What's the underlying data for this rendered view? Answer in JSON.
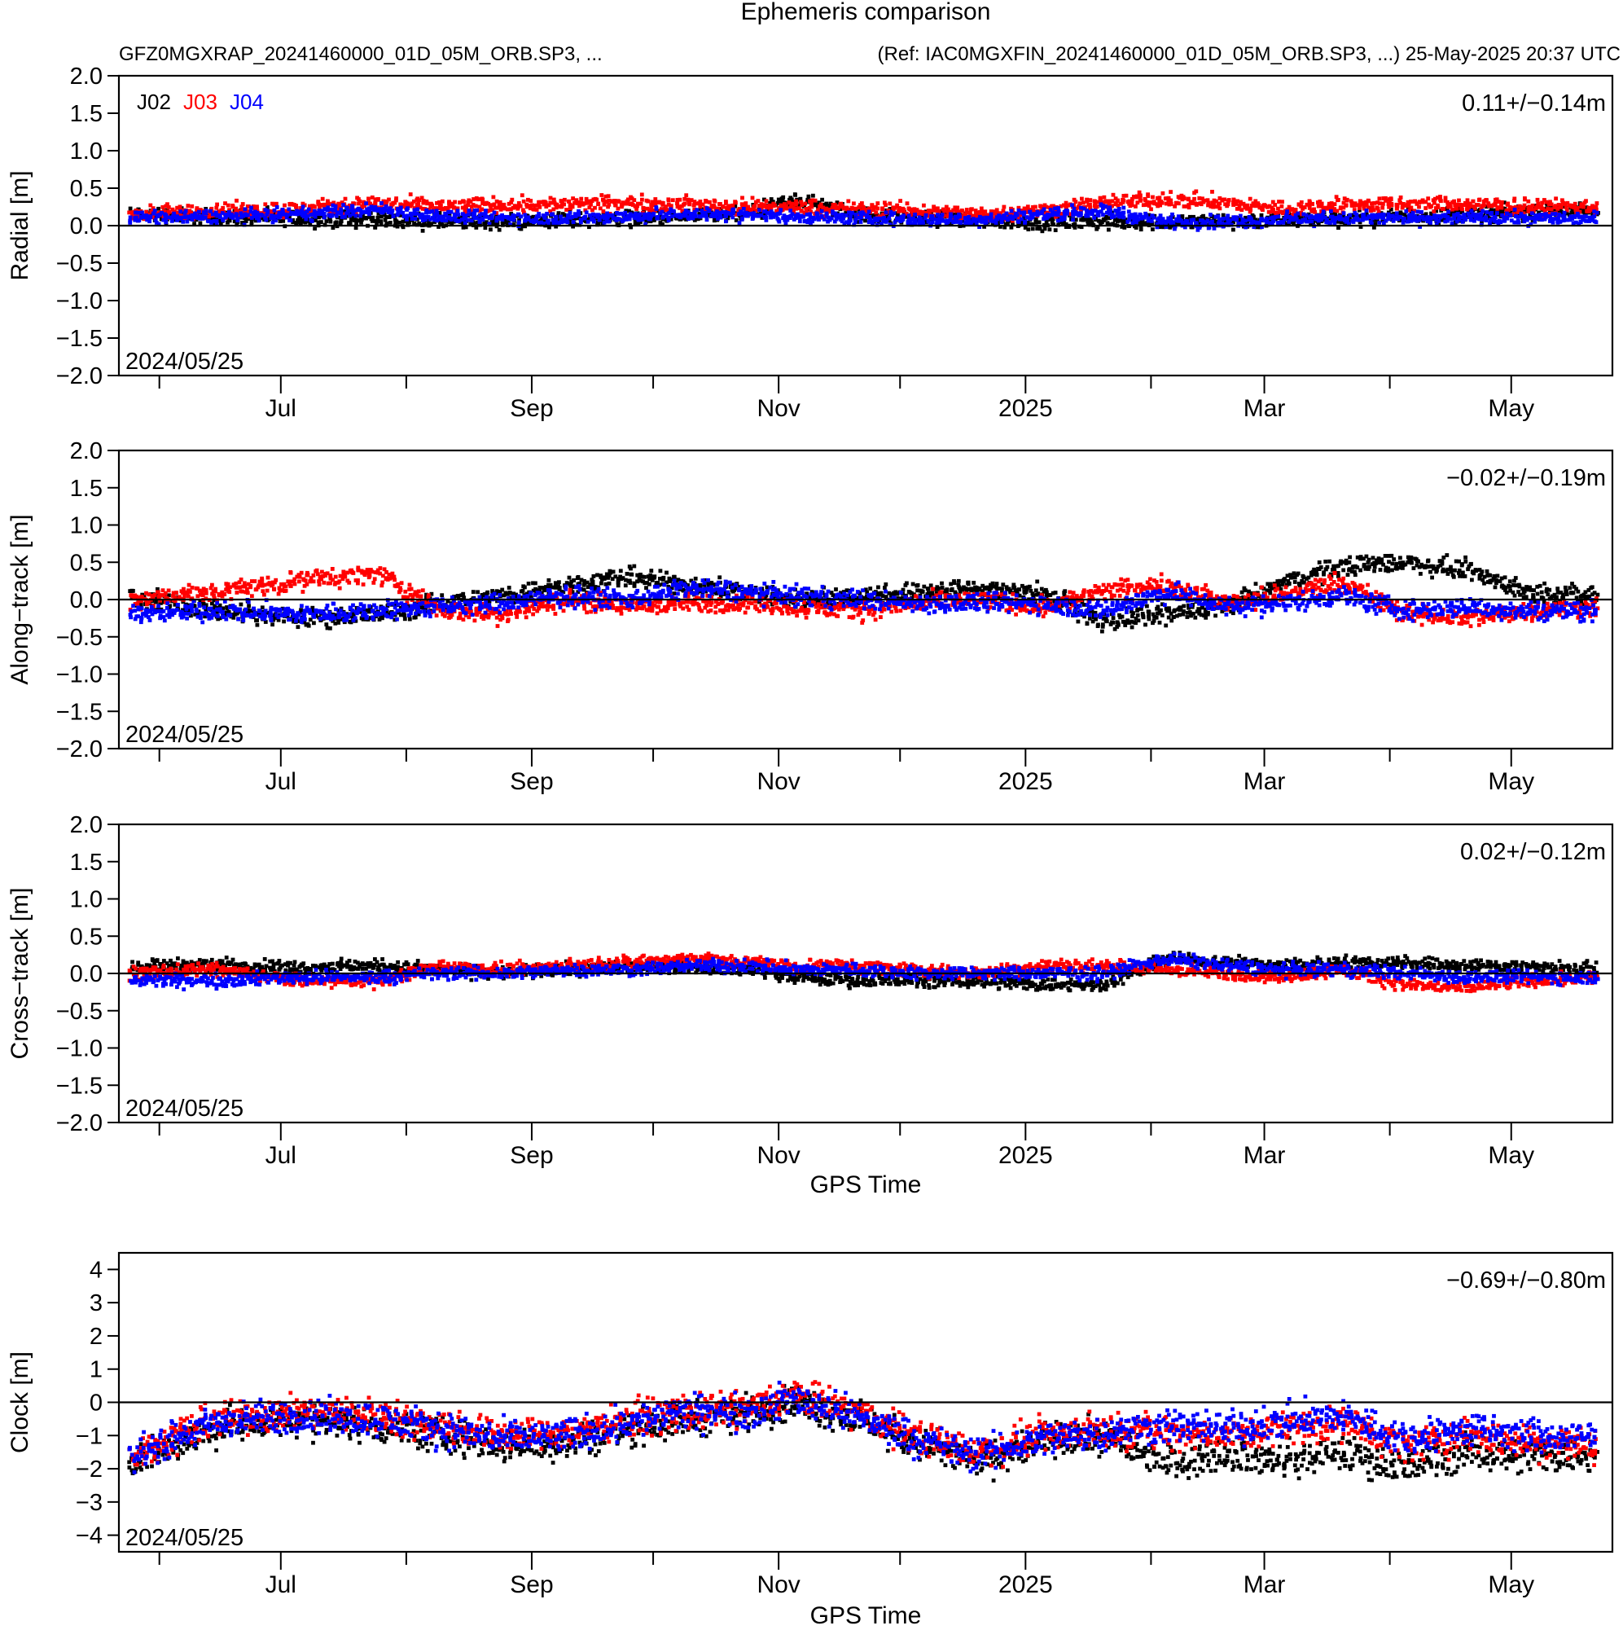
{
  "header": {
    "title": "Ephemeris comparison",
    "subtitle_left": "GFZ0MGXRAP_20241460000_01D_05M_ORB.SP3, ...",
    "subtitle_right": "(Ref: IAC0MGXFIN_20241460000_01D_05M_ORB.SP3, ...)  25-May-2025 20:37 UTC"
  },
  "legend": [
    {
      "label": "J02",
      "color": "#000000"
    },
    {
      "label": "J03",
      "color": "#ff0000"
    },
    {
      "label": "J04",
      "color": "#0000ff"
    }
  ],
  "x_axis": {
    "label": "GPS Time",
    "tick_labels": [
      "Jul",
      "Sep",
      "Nov",
      "2025",
      "Mar",
      "May"
    ]
  },
  "chart_data": [
    {
      "type": "scatter",
      "ylabel": "Radial [m]",
      "ylim": [
        -2.0,
        2.0
      ],
      "yticks": [
        "2.0",
        "1.5",
        "1.0",
        "0.5",
        "0.0",
        "−0.5",
        "−1.0",
        "−1.5",
        "−2.0"
      ],
      "stats": "0.11+/−0.14m",
      "start_date": "2024/05/25",
      "show_legend": true,
      "x": [
        "2024-05-25",
        "2024-06-15",
        "2024-07-05",
        "2024-07-25",
        "2024-08-10",
        "2024-08-25",
        "2024-09-10",
        "2024-09-25",
        "2024-10-10",
        "2024-10-25",
        "2024-11-05",
        "2024-11-20",
        "2024-12-05",
        "2024-12-20",
        "2025-01-05",
        "2025-01-20",
        "2025-02-05",
        "2025-02-20",
        "2025-03-05",
        "2025-03-20",
        "2025-04-05",
        "2025-04-20",
        "2025-05-05",
        "2025-05-22"
      ],
      "series": [
        {
          "name": "J02",
          "color": "#000000",
          "values": [
            0.15,
            0.12,
            0.1,
            0.08,
            0.05,
            0.05,
            0.08,
            0.1,
            0.12,
            0.15,
            0.35,
            0.15,
            0.1,
            0.08,
            0.05,
            0.05,
            0.05,
            0.05,
            0.08,
            0.1,
            0.12,
            0.15,
            0.18,
            0.2
          ],
          "spread": 0.12
        },
        {
          "name": "J03",
          "color": "#ff0000",
          "values": [
            0.15,
            0.2,
            0.22,
            0.3,
            0.25,
            0.28,
            0.28,
            0.3,
            0.28,
            0.25,
            0.25,
            0.22,
            0.2,
            0.15,
            0.2,
            0.3,
            0.35,
            0.3,
            0.22,
            0.28,
            0.28,
            0.28,
            0.25,
            0.25
          ],
          "spread": 0.12
        },
        {
          "name": "J04",
          "color": "#0000ff",
          "values": [
            0.1,
            0.12,
            0.15,
            0.22,
            0.12,
            0.1,
            0.1,
            0.12,
            0.15,
            0.15,
            0.12,
            0.1,
            0.08,
            0.08,
            0.15,
            0.2,
            0.05,
            0.05,
            0.08,
            0.1,
            0.1,
            0.1,
            0.1,
            0.1
          ],
          "spread": 0.1
        }
      ]
    },
    {
      "type": "scatter",
      "ylabel": "Along−track [m]",
      "ylim": [
        -2.0,
        2.0
      ],
      "yticks": [
        "2.0",
        "1.5",
        "1.0",
        "0.5",
        "0.0",
        "−0.5",
        "−1.0",
        "−1.5",
        "−2.0"
      ],
      "stats": "−0.02+/−0.19m",
      "start_date": "2024/05/25",
      "show_legend": false,
      "x": [
        "2024-05-25",
        "2024-06-15",
        "2024-07-05",
        "2024-07-25",
        "2024-08-10",
        "2024-08-25",
        "2024-09-10",
        "2024-09-25",
        "2024-10-10",
        "2024-10-25",
        "2024-11-05",
        "2024-11-20",
        "2024-12-05",
        "2024-12-20",
        "2025-01-05",
        "2025-01-20",
        "2025-02-05",
        "2025-02-20",
        "2025-03-05",
        "2025-03-20",
        "2025-04-05",
        "2025-04-20",
        "2025-05-05",
        "2025-05-22"
      ],
      "series": [
        {
          "name": "J02",
          "color": "#000000",
          "values": [
            0.05,
            -0.15,
            -0.25,
            -0.2,
            -0.05,
            0.05,
            0.2,
            0.3,
            0.2,
            0.1,
            0.0,
            0.05,
            0.1,
            0.15,
            0.1,
            -0.3,
            -0.2,
            -0.1,
            0.2,
            0.45,
            0.5,
            0.4,
            0.1,
            0.05
          ],
          "spread": 0.15
        },
        {
          "name": "J03",
          "color": "#ff0000",
          "values": [
            0.0,
            0.1,
            0.25,
            0.35,
            -0.15,
            -0.2,
            0.0,
            -0.1,
            -0.05,
            -0.05,
            -0.1,
            -0.15,
            -0.05,
            0.0,
            -0.1,
            0.1,
            0.2,
            -0.05,
            0.05,
            0.25,
            -0.2,
            -0.25,
            -0.15,
            -0.1
          ],
          "spread": 0.15
        },
        {
          "name": "J04",
          "color": "#0000ff",
          "values": [
            -0.2,
            -0.15,
            -0.2,
            -0.15,
            -0.1,
            -0.05,
            0.05,
            0.0,
            0.15,
            0.1,
            0.05,
            0.0,
            -0.05,
            -0.05,
            -0.05,
            -0.15,
            0.1,
            -0.1,
            -0.05,
            0.05,
            -0.15,
            -0.1,
            -0.15,
            -0.15
          ],
          "spread": 0.15
        }
      ]
    },
    {
      "type": "scatter",
      "ylabel": "Cross−track [m]",
      "ylim": [
        -2.0,
        2.0
      ],
      "yticks": [
        "2.0",
        "1.5",
        "1.0",
        "0.5",
        "0.0",
        "−0.5",
        "−1.0",
        "−1.5",
        "−2.0"
      ],
      "stats": "0.02+/−0.12m",
      "start_date": "2024/05/25",
      "show_legend": false,
      "x": [
        "2024-05-25",
        "2024-06-15",
        "2024-07-05",
        "2024-07-25",
        "2024-08-10",
        "2024-08-25",
        "2024-09-10",
        "2024-09-25",
        "2024-10-10",
        "2024-10-25",
        "2024-11-05",
        "2024-11-20",
        "2024-12-05",
        "2024-12-20",
        "2025-01-05",
        "2025-01-20",
        "2025-02-05",
        "2025-02-20",
        "2025-03-05",
        "2025-03-20",
        "2025-04-05",
        "2025-04-20",
        "2025-05-05",
        "2025-05-22"
      ],
      "series": [
        {
          "name": "J02",
          "color": "#000000",
          "values": [
            0.1,
            0.12,
            0.08,
            0.1,
            0.05,
            0.0,
            0.05,
            0.1,
            0.1,
            0.05,
            -0.05,
            -0.1,
            -0.1,
            -0.1,
            -0.15,
            -0.15,
            0.2,
            0.15,
            0.1,
            0.15,
            0.15,
            0.1,
            0.1,
            0.05
          ],
          "spread": 0.1
        },
        {
          "name": "J03",
          "color": "#ff0000",
          "values": [
            0.0,
            0.05,
            -0.1,
            -0.1,
            0.1,
            0.05,
            0.1,
            0.15,
            0.2,
            0.15,
            0.1,
            0.1,
            0.05,
            0.0,
            0.1,
            0.1,
            0.05,
            0.0,
            -0.05,
            0.05,
            -0.15,
            -0.2,
            -0.1,
            -0.05
          ],
          "spread": 0.1
        },
        {
          "name": "J04",
          "color": "#0000ff",
          "values": [
            -0.1,
            -0.1,
            -0.05,
            -0.05,
            0.0,
            0.0,
            0.05,
            0.05,
            0.1,
            0.1,
            0.05,
            0.05,
            0.0,
            0.0,
            0.0,
            0.0,
            0.2,
            0.1,
            0.05,
            0.05,
            0.0,
            -0.05,
            -0.05,
            -0.05
          ],
          "spread": 0.1
        }
      ]
    },
    {
      "type": "scatter",
      "ylabel": "Clock [m]",
      "ylim": [
        -4.5,
        4.5
      ],
      "yticks": [
        "4",
        "3",
        "2",
        "1",
        "0",
        "−1",
        "−2",
        "−3",
        "−4"
      ],
      "stats": "−0.69+/−0.80m",
      "start_date": "2024/05/25",
      "show_legend": false,
      "x": [
        "2024-05-25",
        "2024-06-15",
        "2024-07-05",
        "2024-07-25",
        "2024-08-10",
        "2024-08-25",
        "2024-09-10",
        "2024-09-25",
        "2024-10-10",
        "2024-10-25",
        "2024-11-05",
        "2024-11-20",
        "2024-12-05",
        "2024-12-20",
        "2025-01-05",
        "2025-01-20",
        "2025-02-05",
        "2025-02-20",
        "2025-03-05",
        "2025-03-20",
        "2025-04-05",
        "2025-04-20",
        "2025-05-05",
        "2025-05-22"
      ],
      "series": [
        {
          "name": "J02",
          "color": "#000000",
          "values": [
            -1.8,
            -0.8,
            -0.5,
            -0.7,
            -1.0,
            -1.3,
            -1.2,
            -0.8,
            -0.5,
            -0.3,
            0.0,
            -0.5,
            -1.2,
            -1.8,
            -1.2,
            -1.0,
            -1.8,
            -1.5,
            -1.8,
            -1.5,
            -2.0,
            -1.5,
            -1.6,
            -1.6
          ],
          "spread": 0.6
        },
        {
          "name": "J03",
          "color": "#ff0000",
          "values": [
            -1.6,
            -0.5,
            -0.3,
            -0.4,
            -0.7,
            -1.0,
            -0.9,
            -0.5,
            -0.3,
            -0.2,
            0.2,
            -0.3,
            -1.0,
            -1.5,
            -1.0,
            -0.8,
            -0.9,
            -1.0,
            -0.8,
            -0.6,
            -1.3,
            -1.0,
            -1.2,
            -1.3
          ],
          "spread": 0.6
        },
        {
          "name": "J04",
          "color": "#0000ff",
          "values": [
            -1.6,
            -0.6,
            -0.4,
            -0.5,
            -0.8,
            -1.1,
            -1.0,
            -0.6,
            -0.3,
            -0.3,
            0.1,
            -0.4,
            -1.1,
            -1.6,
            -1.1,
            -0.9,
            -0.7,
            -0.8,
            -0.6,
            -0.4,
            -1.1,
            -0.8,
            -1.0,
            -1.1
          ],
          "spread": 0.6
        }
      ]
    }
  ]
}
